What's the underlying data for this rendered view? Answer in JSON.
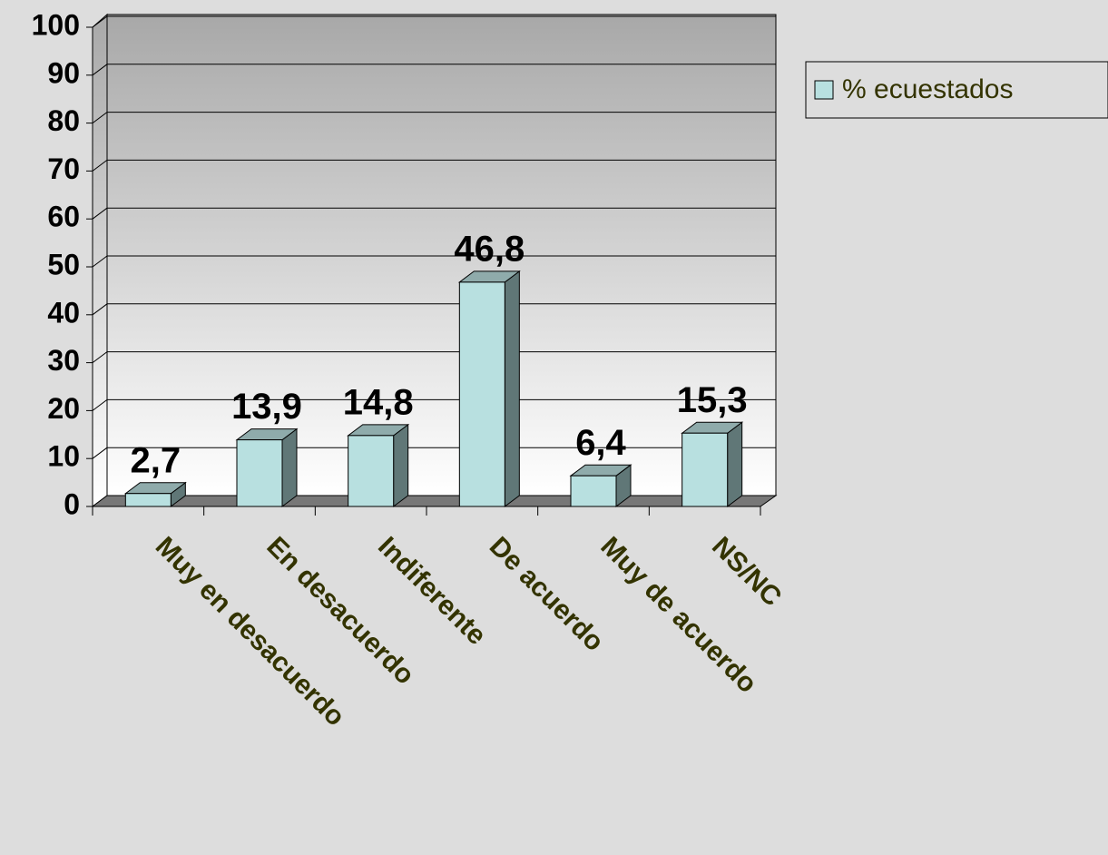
{
  "chart_data": {
    "type": "bar3d",
    "categories": [
      "Muy en desacuerdo",
      "En desacuerdo",
      "Indiferente",
      "De acuerdo",
      "Muy de acuerdo",
      "NS/NC"
    ],
    "series": [
      {
        "name": "% ecuestados",
        "color": "#b8e0e0",
        "values": [
          2.7,
          13.9,
          14.8,
          46.8,
          6.4,
          15.3
        ],
        "value_labels": [
          "2,7",
          "13,9",
          "14,8",
          "46,8",
          "6,4",
          "15,3"
        ]
      }
    ],
    "ylim": [
      0,
      100
    ],
    "yticks": [
      0,
      10,
      20,
      30,
      40,
      50,
      60,
      70,
      80,
      90,
      100
    ],
    "grid": true,
    "legend": "right"
  }
}
